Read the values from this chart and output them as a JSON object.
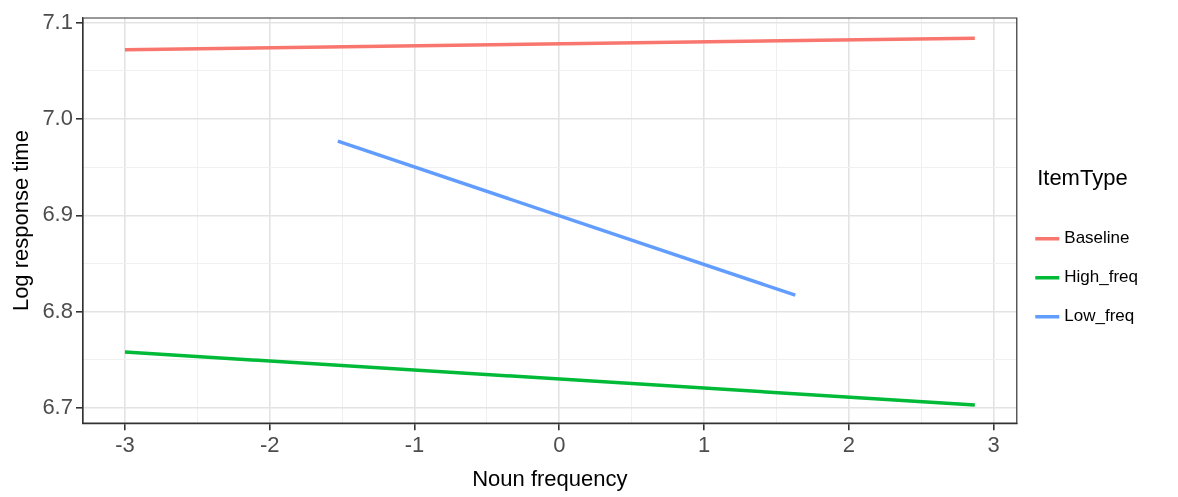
{
  "chart_data": {
    "type": "line",
    "xlabel": "Noun frequency",
    "ylabel": "Log response time",
    "legend_title": "ItemType",
    "legend": "right",
    "grid": true,
    "marker": "none",
    "line_style": "solid",
    "xlim": [
      -3.29,
      3.16
    ],
    "xticks": [
      -3,
      {
        "value": -2.5,
        "label": null
      },
      -2,
      {
        "value": -1.5,
        "label": null
      },
      -1,
      {
        "value": -0.5,
        "label": null
      },
      0,
      {
        "value": 0.5,
        "label": null
      },
      1,
      {
        "value": 1.5,
        "label": null
      },
      2,
      {
        "value": 2.5,
        "label": null
      },
      3
    ],
    "ylim": [
      6.684,
      7.105
    ],
    "yticks": [
      6.7,
      {
        "value": 6.75,
        "label": null
      },
      6.8,
      {
        "value": 6.85,
        "label": null
      },
      6.9,
      {
        "value": 6.95,
        "label": null
      },
      "7.0",
      {
        "value": 7.05,
        "label": null
      },
      7.1
    ],
    "series": [
      {
        "name": "Baseline",
        "color": "#f8766d",
        "x": [
          -3,
          2.87
        ],
        "values": [
          7.072,
          7.084
        ]
      },
      {
        "name": "High_freq",
        "color": "#00ba38",
        "x": [
          -3,
          2.87
        ],
        "values": [
          6.758,
          6.703
        ]
      },
      {
        "name": "Low_freq",
        "color": "#619cff",
        "x": [
          -1.53,
          1.63
        ],
        "values": [
          6.977,
          6.817
        ]
      }
    ]
  }
}
